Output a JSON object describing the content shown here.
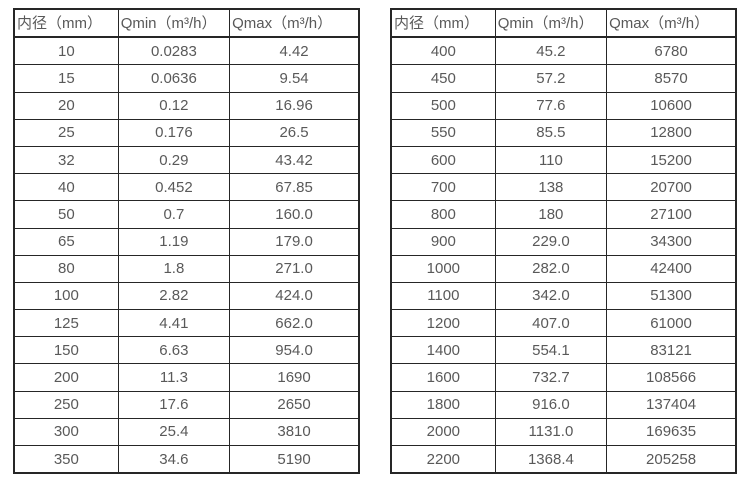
{
  "colors": {
    "background": "#ffffff",
    "border": "#262626",
    "text": "#595959"
  },
  "chart_data": [
    {
      "type": "table",
      "columns": [
        "内径（mm）",
        "Qmin（m³/h）",
        "Qmax（m³/h）"
      ],
      "rows": [
        [
          "10",
          "0.0283",
          "4.42"
        ],
        [
          "15",
          "0.0636",
          "9.54"
        ],
        [
          "20",
          "0.12",
          "16.96"
        ],
        [
          "25",
          "0.176",
          "26.5"
        ],
        [
          "32",
          "0.29",
          "43.42"
        ],
        [
          "40",
          "0.452",
          "67.85"
        ],
        [
          "50",
          "0.7",
          "160.0"
        ],
        [
          "65",
          "1.19",
          "179.0"
        ],
        [
          "80",
          "1.8",
          "271.0"
        ],
        [
          "100",
          "2.82",
          "424.0"
        ],
        [
          "125",
          "4.41",
          "662.0"
        ],
        [
          "150",
          "6.63",
          "954.0"
        ],
        [
          "200",
          "11.3",
          "1690"
        ],
        [
          "250",
          "17.6",
          "2650"
        ],
        [
          "300",
          "25.4",
          "3810"
        ],
        [
          "350",
          "34.6",
          "5190"
        ]
      ]
    },
    {
      "type": "table",
      "columns": [
        "内径（mm）",
        "Qmin（m³/h）",
        "Qmax（m³/h）"
      ],
      "rows": [
        [
          "400",
          "45.2",
          "6780"
        ],
        [
          "450",
          "57.2",
          "8570"
        ],
        [
          "500",
          "77.6",
          "10600"
        ],
        [
          "550",
          "85.5",
          "12800"
        ],
        [
          "600",
          "110",
          "15200"
        ],
        [
          "700",
          "138",
          "20700"
        ],
        [
          "800",
          "180",
          "27100"
        ],
        [
          "900",
          "229.0",
          "34300"
        ],
        [
          "1000",
          "282.0",
          "42400"
        ],
        [
          "1100",
          "342.0",
          "51300"
        ],
        [
          "1200",
          "407.0",
          "61000"
        ],
        [
          "1400",
          "554.1",
          "83121"
        ],
        [
          "1600",
          "732.7",
          "108566"
        ],
        [
          "1800",
          "916.0",
          "137404"
        ],
        [
          "2000",
          "1131.0",
          "169635"
        ],
        [
          "2200",
          "1368.4",
          "205258"
        ]
      ]
    }
  ]
}
